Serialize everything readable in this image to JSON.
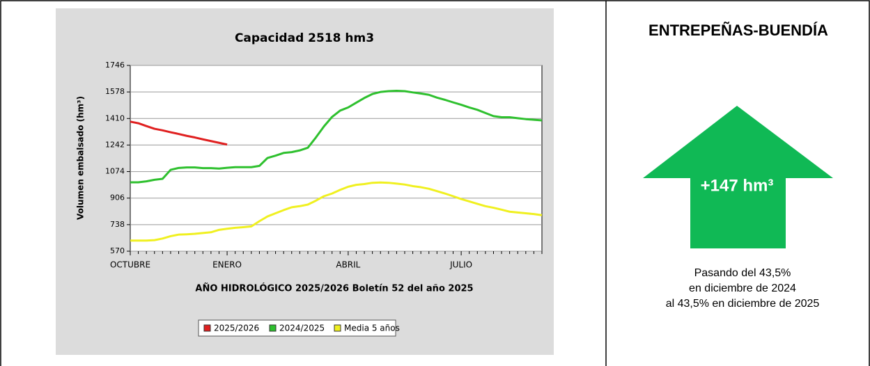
{
  "chart_data": {
    "type": "line",
    "title": "Capacidad 2518 hm3",
    "y_label": "Volumen embalsado (hm³)",
    "x_label": "AÑO HIDROLÓGICO 2025/2026 Boletín 52 del año 2025",
    "categories": [
      "OCTUBRE",
      null,
      null,
      null,
      null,
      null,
      null,
      null,
      null,
      null,
      null,
      null,
      "ENERO",
      null,
      null,
      null,
      null,
      null,
      null,
      null,
      null,
      null,
      null,
      null,
      null,
      null,
      null,
      "ABRIL",
      null,
      null,
      null,
      null,
      null,
      null,
      null,
      null,
      null,
      null,
      null,
      null,
      null,
      "JULIO",
      null,
      null,
      null,
      null,
      null,
      null,
      null,
      null,
      null,
      null
    ],
    "ylim": [
      570,
      1746
    ],
    "yticks": [
      570,
      738,
      906,
      1074,
      1242,
      1410,
      1578,
      1746
    ],
    "grid": true,
    "legend": "bottom",
    "series": [
      {
        "name": "2025/2026",
        "color": "#e02020",
        "values": [
          1390,
          1380,
          1362,
          1345,
          1335,
          1323,
          1312,
          1300,
          1290,
          1278,
          1267,
          1256,
          1245,
          null,
          null,
          null,
          null,
          null,
          null,
          null,
          null,
          null,
          null,
          null,
          null,
          null,
          null,
          null,
          null,
          null,
          null,
          null,
          null,
          null,
          null,
          null,
          null,
          null,
          null,
          null,
          null,
          null,
          null,
          null,
          null,
          null,
          null,
          null,
          null,
          null,
          null,
          null
        ]
      },
      {
        "name": "2024/2025",
        "color": "#2ec02e",
        "values": [
          1006,
          1006,
          1012,
          1022,
          1028,
          1085,
          1097,
          1100,
          1100,
          1096,
          1096,
          1093,
          1098,
          1102,
          1102,
          1102,
          1110,
          1160,
          1175,
          1192,
          1197,
          1208,
          1225,
          1290,
          1360,
          1420,
          1460,
          1480,
          1510,
          1540,
          1565,
          1578,
          1583,
          1585,
          1583,
          1575,
          1568,
          1560,
          1542,
          1528,
          1512,
          1497,
          1480,
          1465,
          1445,
          1425,
          1418,
          1418,
          1412,
          1406,
          1402,
          1398
        ]
      },
      {
        "name": "Media 5 años",
        "color": "#f0f020",
        "values": [
          637,
          637,
          637,
          640,
          650,
          665,
          675,
          677,
          680,
          685,
          690,
          705,
          712,
          718,
          722,
          727,
          760,
          790,
          810,
          830,
          848,
          855,
          865,
          890,
          918,
          935,
          958,
          978,
          990,
          995,
          1003,
          1005,
          1003,
          998,
          992,
          982,
          975,
          965,
          950,
          935,
          918,
          900,
          885,
          870,
          855,
          845,
          833,
          820,
          815,
          810,
          805,
          798
        ]
      }
    ]
  },
  "panel": {
    "title": "ENTREPEÑAS-BUENDÍA",
    "change": "+147 hm³",
    "lines": [
      "Pasando del 43,5%",
      "en diciembre de 2024",
      "al 43,5% en diciembre de 2025"
    ]
  }
}
